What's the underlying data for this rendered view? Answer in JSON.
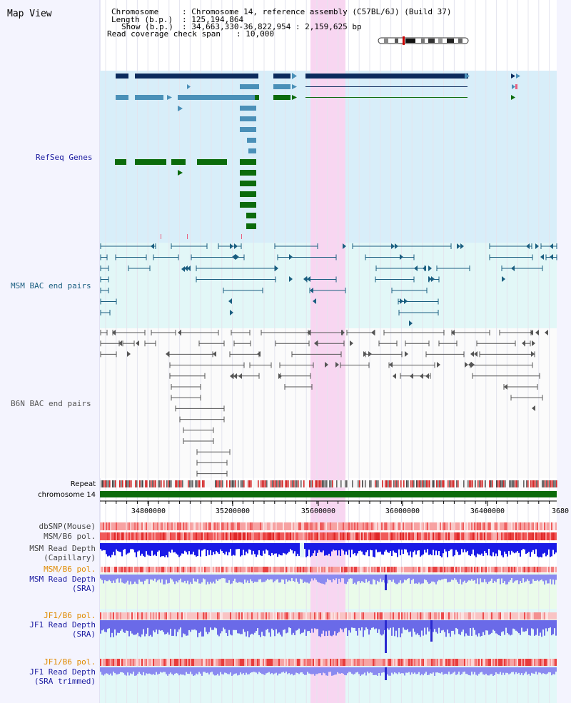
{
  "view_title": "Map View",
  "header": {
    "chromosome_key": "Chromosome",
    "chromosome_val": ": Chromosome 14, reference assembly (C57BL/6J) (Build 37)",
    "length_key": "Length (b.p.)",
    "length_val": ": 125,194,864",
    "show_key": "Show (b.p.)",
    "show_val": ": 34,663,330-36,822,954 : 2,159,625 bp",
    "coverage_key": "Read coverage check span",
    "coverage_val": ": 10,000"
  },
  "tracks": {
    "refseq": "RefSeq Genes",
    "msm_bac": "MSM BAC end pairs",
    "b6n_bac": "B6N BAC end pairs",
    "repeat": "Repeat",
    "chromosome": "chromosome 14",
    "dbsnp": "dbSNP(Mouse)",
    "msm_b6_pol": "MSM/B6 pol.",
    "msm_depth_cap_1": "MSM Read Depth",
    "msm_depth_cap_2": "(Capillary)",
    "msm_b6_pol_2": "MSM/B6 pol.",
    "msm_depth_sra_1": "MSM Read Depth",
    "msm_depth_sra_2": "(SRA)",
    "jf1_pol": "JF1/B6 pol.",
    "jf1_depth_sra_1": "JF1 Read Depth",
    "jf1_depth_sra_2": "(SRA)",
    "jf1_pol_2": "JF1/B6 pol.",
    "jf1_depth_trim_1": "JF1 Read Depth",
    "jf1_depth_trim_2": "(SRA trimmed)"
  },
  "axis_ticks": [
    "34800000",
    "35200000",
    "35600000",
    "36000000",
    "36400000",
    "3680"
  ],
  "colors": {
    "gene_dark": "#0b2a5c",
    "gene_light": "#4a90b8",
    "gene_green": "#0b6b0b",
    "msm_line": "#1a5e80",
    "b6n_line": "#555555",
    "refseq_bg": "#d8eef9",
    "msm_bg": "#e2f7f7",
    "highlight": "#f8d6f1",
    "chrom_bar": "#0b6b0b",
    "label_blue": "#1a1aa0",
    "label_orange": "#e08a00",
    "label_teal": "#1a5e80"
  }
}
